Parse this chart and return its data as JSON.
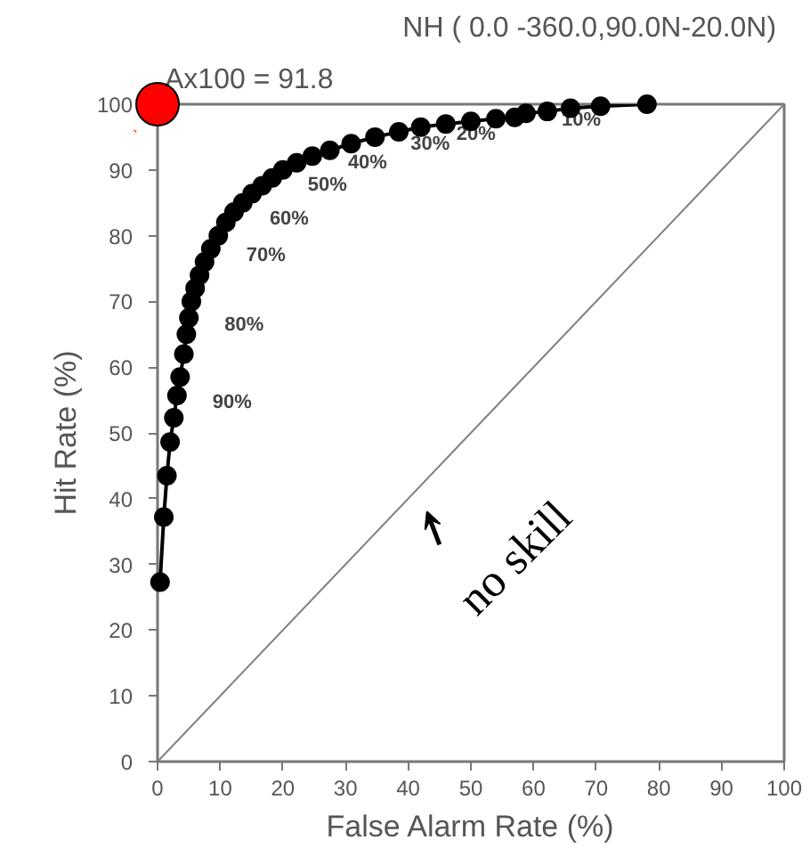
{
  "chart_data": {
    "type": "line",
    "title": "NH (  0.0 -360.0,90.0N-20.0N)",
    "subtitle": "Ax100 = 91.8",
    "xlabel": "False Alarm Rate (%)",
    "ylabel": "Hit Rate (%)",
    "xlim": [
      0,
      100
    ],
    "ylim": [
      0,
      100
    ],
    "xticks": [
      0,
      10,
      20,
      30,
      40,
      50,
      60,
      70,
      80,
      90,
      100
    ],
    "yticks": [
      0,
      10,
      20,
      30,
      40,
      50,
      60,
      70,
      80,
      90,
      100
    ],
    "grid": false,
    "series": [
      {
        "color": "#808080",
        "marker": "none",
        "x": [
          0,
          100
        ],
        "values": [
          0,
          100
        ]
      },
      {
        "color": "#000000",
        "marker": "circle",
        "x": [
          0.4,
          1.0,
          1.5,
          2.0,
          2.6,
          3.1,
          3.6,
          4.2,
          4.6,
          5.0,
          5.4,
          6.0,
          6.7,
          7.5,
          8.5,
          9.7,
          10.9,
          12.2,
          13.6,
          15.1,
          16.7,
          18.3,
          20,
          22.2,
          24.7,
          27.5,
          30.9,
          34.7,
          38.5,
          42,
          46,
          50,
          54,
          57,
          58.8,
          62.2,
          65.9,
          70.7,
          78.1
        ],
        "values": [
          27.3,
          37.2,
          43.5,
          48.6,
          52.3,
          55.7,
          58.5,
          62,
          65,
          67.5,
          70,
          72,
          74,
          76,
          78,
          80,
          82,
          83.6,
          85,
          86.4,
          87.6,
          88.8,
          90,
          91.1,
          92.1,
          93,
          94,
          95,
          95.8,
          96.5,
          97,
          97.4,
          97.8,
          98,
          98.6,
          98.9,
          99.4,
          99.7,
          100
        ]
      },
      {
        "type": "scatter",
        "color": "#ff0000",
        "marker": "circle",
        "x": [
          0
        ],
        "values": [
          100
        ]
      }
    ],
    "annotations": [
      {
        "text": "90%",
        "x": 3.1,
        "y": 55.7
      },
      {
        "text": "80%",
        "x": 5.0,
        "y": 67.5
      },
      {
        "text": "70%",
        "x": 8.5,
        "y": 78
      },
      {
        "text": "60%",
        "x": 12.2,
        "y": 83.6
      },
      {
        "text": "50%",
        "x": 18.3,
        "y": 88.8
      },
      {
        "text": "40%",
        "x": 24.7,
        "y": 92.1
      },
      {
        "text": "30%",
        "x": 34.7,
        "y": 95
      },
      {
        "text": "20%",
        "x": 42,
        "y": 96.5
      },
      {
        "text": "10%",
        "x": 58.8,
        "y": 98.6
      },
      {
        "text": "no skill",
        "x": 40,
        "y": 40
      }
    ]
  }
}
